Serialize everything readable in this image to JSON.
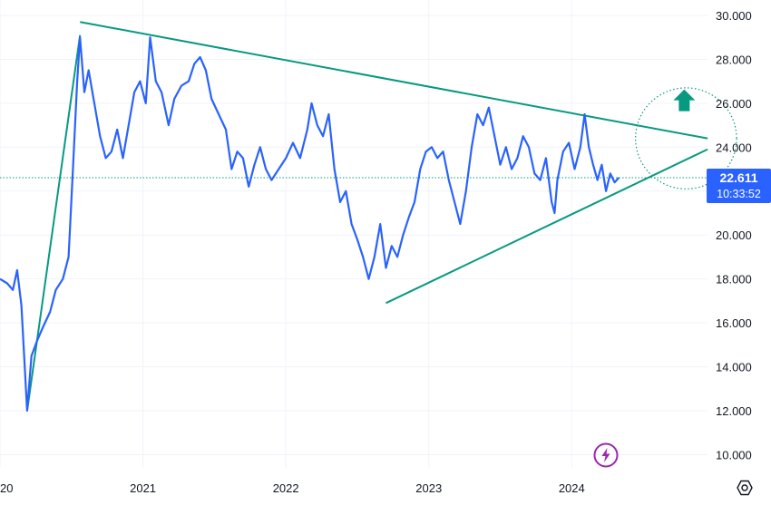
{
  "colors": {
    "price_line": "#2962ff",
    "trendline": "#089981",
    "grid": "#f0f3fa",
    "text": "#131722",
    "badge_bg": "#2962ff",
    "arrow": "#089981",
    "lightning": "#9c27b0"
  },
  "price_badge": {
    "price": "22.611",
    "countdown": "10:33:52"
  },
  "icons": {
    "settings": "hexagon-settings-icon",
    "lightning": "lightning-icon",
    "arrow": "arrow-up-icon"
  },
  "chart_data": {
    "type": "line",
    "title": "",
    "x_axis": {
      "ticks": [
        "20",
        "2021",
        "2022",
        "2023",
        "2024"
      ],
      "tick_values": [
        2020.0,
        2021.0,
        2022.0,
        2023.0,
        2024.0
      ],
      "range": [
        2020.0,
        2024.95
      ]
    },
    "y_axis": {
      "ticks": [
        "10.000",
        "12.000",
        "14.000",
        "16.000",
        "18.000",
        "20.000",
        "22.000",
        "24.000",
        "26.000",
        "28.000",
        "30.000"
      ],
      "range": [
        9.4,
        30.7
      ],
      "position": "right"
    },
    "grid": true,
    "last_price": 22.611,
    "series": [
      {
        "points": [
          [
            2020.0,
            18.0
          ],
          [
            2020.05,
            17.8
          ],
          [
            2020.09,
            17.5
          ],
          [
            2020.12,
            18.4
          ],
          [
            2020.15,
            16.8
          ],
          [
            2020.19,
            12.0
          ],
          [
            2020.22,
            14.5
          ],
          [
            2020.26,
            15.2
          ],
          [
            2020.3,
            15.8
          ],
          [
            2020.35,
            16.5
          ],
          [
            2020.39,
            17.5
          ],
          [
            2020.44,
            18.0
          ],
          [
            2020.48,
            19.0
          ],
          [
            2020.51,
            23.0
          ],
          [
            2020.54,
            27.0
          ],
          [
            2020.56,
            29.0
          ],
          [
            2020.59,
            26.5
          ],
          [
            2020.62,
            27.5
          ],
          [
            2020.66,
            26.0
          ],
          [
            2020.7,
            24.5
          ],
          [
            2020.74,
            23.5
          ],
          [
            2020.78,
            23.8
          ],
          [
            2020.82,
            24.8
          ],
          [
            2020.86,
            23.5
          ],
          [
            2020.9,
            25.0
          ],
          [
            2020.94,
            26.5
          ],
          [
            2020.98,
            27.0
          ],
          [
            2021.02,
            26.0
          ],
          [
            2021.05,
            29.0
          ],
          [
            2021.09,
            27.0
          ],
          [
            2021.13,
            26.5
          ],
          [
            2021.18,
            25.0
          ],
          [
            2021.22,
            26.2
          ],
          [
            2021.27,
            26.8
          ],
          [
            2021.32,
            27.0
          ],
          [
            2021.36,
            27.8
          ],
          [
            2021.4,
            28.1
          ],
          [
            2021.44,
            27.5
          ],
          [
            2021.48,
            26.2
          ],
          [
            2021.53,
            25.5
          ],
          [
            2021.58,
            24.8
          ],
          [
            2021.62,
            23.0
          ],
          [
            2021.66,
            23.8
          ],
          [
            2021.7,
            23.5
          ],
          [
            2021.74,
            22.2
          ],
          [
            2021.78,
            23.2
          ],
          [
            2021.82,
            24.0
          ],
          [
            2021.86,
            23.0
          ],
          [
            2021.9,
            22.5
          ],
          [
            2021.95,
            23.0
          ],
          [
            2022.0,
            23.5
          ],
          [
            2022.05,
            24.2
          ],
          [
            2022.1,
            23.5
          ],
          [
            2022.15,
            24.8
          ],
          [
            2022.18,
            26.0
          ],
          [
            2022.22,
            25.0
          ],
          [
            2022.26,
            24.5
          ],
          [
            2022.3,
            25.5
          ],
          [
            2022.34,
            23.0
          ],
          [
            2022.38,
            21.5
          ],
          [
            2022.42,
            22.0
          ],
          [
            2022.46,
            20.5
          ],
          [
            2022.5,
            19.8
          ],
          [
            2022.54,
            19.0
          ],
          [
            2022.58,
            18.0
          ],
          [
            2022.62,
            19.0
          ],
          [
            2022.66,
            20.5
          ],
          [
            2022.7,
            18.5
          ],
          [
            2022.74,
            19.5
          ],
          [
            2022.78,
            19.0
          ],
          [
            2022.82,
            20.0
          ],
          [
            2022.86,
            20.8
          ],
          [
            2022.9,
            21.5
          ],
          [
            2022.94,
            23.0
          ],
          [
            2022.98,
            23.8
          ],
          [
            2023.02,
            24.0
          ],
          [
            2023.06,
            23.5
          ],
          [
            2023.1,
            23.8
          ],
          [
            2023.14,
            22.5
          ],
          [
            2023.18,
            21.5
          ],
          [
            2023.22,
            20.5
          ],
          [
            2023.26,
            22.0
          ],
          [
            2023.3,
            24.0
          ],
          [
            2023.34,
            25.5
          ],
          [
            2023.38,
            25.0
          ],
          [
            2023.42,
            25.8
          ],
          [
            2023.46,
            24.5
          ],
          [
            2023.5,
            23.2
          ],
          [
            2023.54,
            24.0
          ],
          [
            2023.58,
            23.0
          ],
          [
            2023.62,
            23.5
          ],
          [
            2023.66,
            24.5
          ],
          [
            2023.7,
            24.0
          ],
          [
            2023.74,
            22.8
          ],
          [
            2023.78,
            22.5
          ],
          [
            2023.82,
            23.5
          ],
          [
            2023.86,
            21.5
          ],
          [
            2023.88,
            21.0
          ],
          [
            2023.9,
            22.5
          ],
          [
            2023.94,
            23.8
          ],
          [
            2023.98,
            24.2
          ],
          [
            2024.02,
            23.0
          ],
          [
            2024.06,
            24.0
          ],
          [
            2024.09,
            25.5
          ],
          [
            2024.12,
            24.0
          ],
          [
            2024.15,
            23.2
          ],
          [
            2024.18,
            22.5
          ],
          [
            2024.21,
            23.2
          ],
          [
            2024.24,
            22.0
          ],
          [
            2024.27,
            22.8
          ],
          [
            2024.3,
            22.4
          ],
          [
            2024.33,
            22.611
          ]
        ]
      }
    ],
    "annotations": {
      "upper_trendline": [
        [
          2020.56,
          29.7
        ],
        [
          2024.95,
          24.4
        ]
      ],
      "lower_trendline": [
        [
          2022.7,
          16.9
        ],
        [
          2024.95,
          23.9
        ]
      ],
      "left_trendline": [
        [
          2020.19,
          12.0
        ],
        [
          2020.56,
          29.1
        ]
      ],
      "projection_lines": [
        24.4,
        23.9
      ],
      "forecast_circle": {
        "center": [
          2024.8,
          24.4
        ],
        "radius": 2.3
      },
      "direction": "up"
    }
  }
}
